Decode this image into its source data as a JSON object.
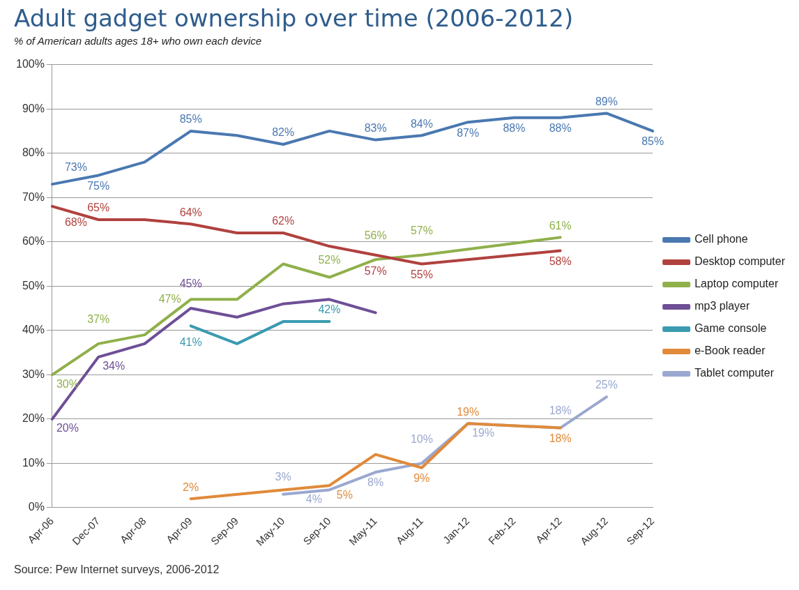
{
  "chart_data": {
    "type": "line",
    "title": "Adult gadget ownership over time (2006-2012)",
    "subtitle": "% of American adults ages 18+ who own each device",
    "categories": [
      "Apr-06",
      "Dec-07",
      "Apr-08",
      "Apr-09",
      "Sep-09",
      "May-10",
      "Sep-10",
      "May-11",
      "Aug-11",
      "Jan-12",
      "Feb-12",
      "Apr-12",
      "Aug-12",
      "Sep-12"
    ],
    "series": [
      {
        "name": "Cell phone",
        "color": "#4a78b0",
        "values": [
          73,
          75,
          78,
          85,
          84,
          82,
          85,
          83,
          84,
          87,
          88,
          88,
          89,
          85
        ],
        "value_labels": [
          "73%",
          "75%",
          null,
          "85%",
          null,
          "82%",
          null,
          "83%",
          "84%",
          "87%",
          "88%",
          "88%",
          "89%",
          "85%"
        ]
      },
      {
        "name": "Desktop computer",
        "color": "#b0413e",
        "values": [
          68,
          65,
          65,
          64,
          62,
          62,
          59,
          57,
          55,
          null,
          null,
          58,
          null,
          null
        ],
        "value_labels": [
          "68%",
          "65%",
          null,
          "64%",
          null,
          "62%",
          null,
          "57%",
          "55%",
          null,
          null,
          "58%",
          null,
          null
        ]
      },
      {
        "name": "Laptop computer",
        "color": "#8fb04a",
        "values": [
          30,
          37,
          39,
          47,
          47,
          55,
          52,
          56,
          57,
          null,
          null,
          61,
          null,
          null
        ],
        "value_labels": [
          "30%",
          "37%",
          null,
          "47%",
          null,
          null,
          "52%",
          "56%",
          "57%",
          null,
          null,
          "61%",
          null,
          null
        ]
      },
      {
        "name": "mp3 player",
        "color": "#6e4f96",
        "values": [
          20,
          34,
          37,
          45,
          43,
          46,
          47,
          44,
          null,
          null,
          null,
          null,
          null,
          null
        ],
        "value_labels": [
          "20%",
          "34%",
          null,
          "45%",
          null,
          null,
          null,
          null,
          null,
          null,
          null,
          null,
          null,
          null
        ]
      },
      {
        "name": "Game console",
        "color": "#3a9ab0",
        "values": [
          null,
          null,
          null,
          41,
          37,
          42,
          42,
          null,
          null,
          null,
          null,
          null,
          null,
          null
        ],
        "value_labels": [
          null,
          null,
          null,
          "41%",
          null,
          null,
          "42%",
          null,
          null,
          null,
          null,
          null,
          null,
          null
        ]
      },
      {
        "name": "e-Book reader",
        "color": "#e08a3a",
        "values": [
          null,
          null,
          null,
          2,
          null,
          4,
          5,
          12,
          9,
          19,
          null,
          18,
          null,
          null
        ],
        "value_labels": [
          null,
          null,
          null,
          "2%",
          null,
          null,
          "5%",
          null,
          "9%",
          "19%",
          null,
          "18%",
          null,
          null
        ]
      },
      {
        "name": "Tablet computer",
        "color": "#9aa8d0",
        "values": [
          null,
          null,
          null,
          null,
          null,
          3,
          4,
          8,
          10,
          19,
          null,
          18,
          25,
          null
        ],
        "value_labels": [
          null,
          null,
          null,
          null,
          null,
          "3%",
          "4%",
          "8%",
          "10%",
          "19%",
          null,
          "18%",
          "25%",
          null
        ]
      }
    ],
    "ylim": [
      0,
      100
    ],
    "yticks": [
      {
        "value": 0,
        "label": "0%"
      },
      {
        "value": 10,
        "label": "10%"
      },
      {
        "value": 20,
        "label": "20%"
      },
      {
        "value": 30,
        "label": "30%"
      },
      {
        "value": 40,
        "label": "40%"
      },
      {
        "value": 50,
        "label": "50%"
      },
      {
        "value": 60,
        "label": "60%"
      },
      {
        "value": 70,
        "label": "70%"
      },
      {
        "value": 80,
        "label": "80%"
      },
      {
        "value": 90,
        "label": "90%"
      },
      {
        "value": 100,
        "label": "100%"
      }
    ],
    "grid": "y",
    "legend": "right",
    "marker": "none",
    "line_style": "solid",
    "annotations": [
      "Source: Pew Internet surveys, 2006-2012"
    ]
  }
}
